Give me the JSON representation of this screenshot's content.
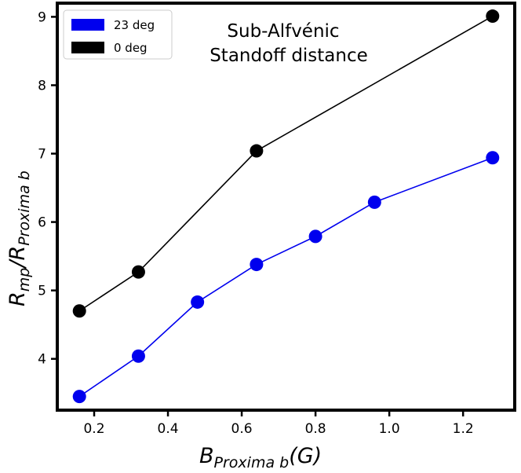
{
  "chart_data": {
    "type": "line",
    "xlabel": {
      "main": "B",
      "sub": "Proxima b",
      "tail": "(G)"
    },
    "ylabel": {
      "main1": "R",
      "sub1": "mp",
      "mid": "/R",
      "sub2": "Proxima b"
    },
    "xlim": [
      0.1,
      1.34
    ],
    "ylim": [
      3.25,
      9.2
    ],
    "xticks": [
      "0.2",
      "0.4",
      "0.6",
      "0.8",
      "1.0",
      "1.2"
    ],
    "xtick_values": [
      0.2,
      0.4,
      0.6,
      0.8,
      1.0,
      1.2
    ],
    "yticks": [
      "4",
      "5",
      "6",
      "7",
      "8",
      "9"
    ],
    "ytick_values": [
      4,
      5,
      6,
      7,
      8,
      9
    ],
    "annotation": [
      "Sub-Alfvénic",
      "Standoff distance"
    ],
    "legend_position": "upper-left",
    "grid": false,
    "series": [
      {
        "name": "23 deg",
        "color": "#0000ee",
        "x": [
          0.16,
          0.32,
          0.48,
          0.64,
          0.8,
          0.96,
          1.28
        ],
        "y": [
          3.45,
          4.04,
          4.83,
          5.38,
          5.79,
          6.29,
          6.94
        ]
      },
      {
        "name": "0 deg",
        "color": "#000000",
        "x": [
          0.16,
          0.32,
          0.64,
          1.28
        ],
        "y": [
          4.7,
          5.27,
          7.04,
          9.01
        ]
      }
    ]
  }
}
